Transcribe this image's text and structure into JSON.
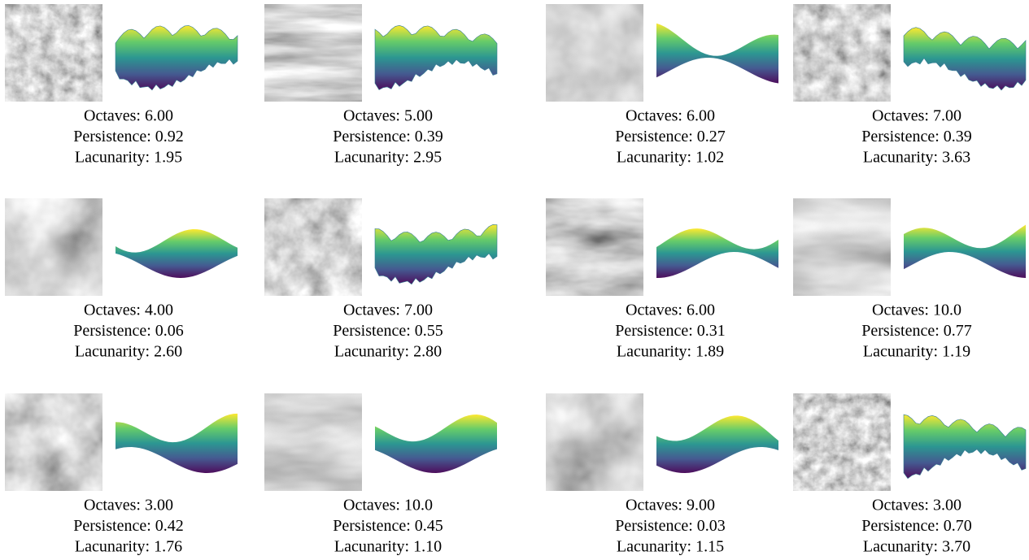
{
  "panels": [
    {
      "lines": [
        "Octaves: 6.00",
        "Persistence: 0.92",
        "Lacunarity: 1.95"
      ]
    },
    {
      "lines": [
        "Octaves: 5.00",
        "Persistence: 0.39",
        "Lacunarity: 2.95"
      ]
    },
    {
      "lines": [
        "Octaves: 6.00",
        "Persistence: 0.27",
        "Lacunarity: 1.02"
      ]
    },
    {
      "lines": [
        "Octaves: 7.00",
        "Persistence: 0.39",
        "Lacunarity: 3.63"
      ]
    },
    {
      "lines": [
        "Octaves: 4.00",
        "Persistence: 0.06",
        "Lacunarity: 2.60"
      ]
    },
    {
      "lines": [
        "Octaves: 7.00",
        "Persistence: 0.55",
        "Lacunarity: 2.80"
      ]
    },
    {
      "lines": [
        "Octaves: 6.00",
        "Persistence: 0.31",
        "Lacunarity: 1.89"
      ]
    },
    {
      "lines": [
        "Octaves: 10.0",
        "Persistence: 0.77",
        "Lacunarity: 1.19"
      ]
    },
    {
      "lines": [
        "Octaves: 3.00",
        "Persistence: 0.42",
        "Lacunarity: 1.76"
      ]
    },
    {
      "lines": [
        "Octaves: 10.0",
        "Persistence: 0.45",
        "Lacunarity: 1.10"
      ]
    },
    {
      "lines": [
        "Octaves: 9.00",
        "Persistence: 0.03",
        "Lacunarity: 1.15"
      ]
    },
    {
      "lines": [
        "Octaves: 3.00",
        "Persistence: 0.70",
        "Lacunarity: 3.70"
      ]
    }
  ]
}
